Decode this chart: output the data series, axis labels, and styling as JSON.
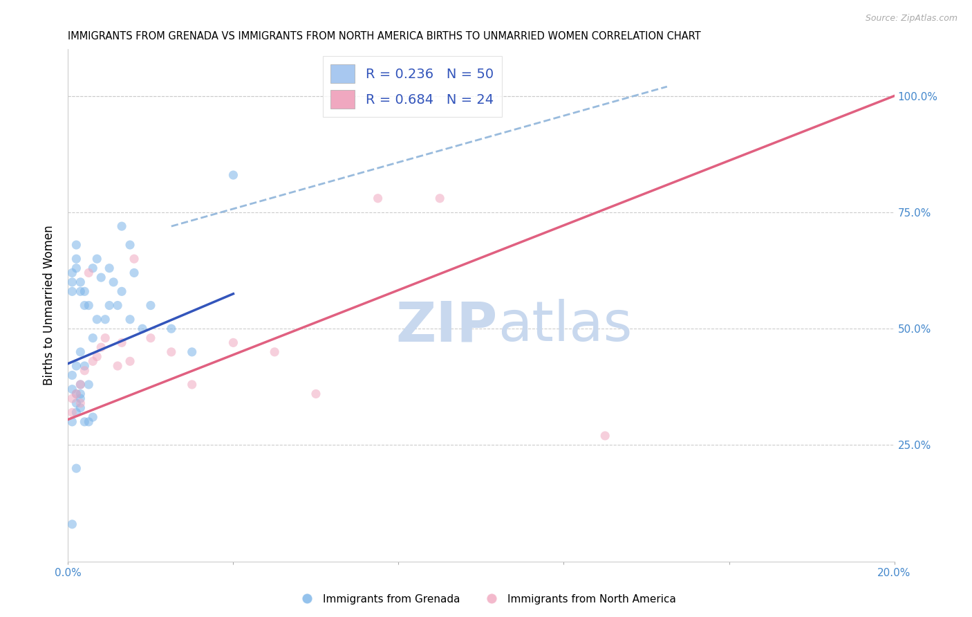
{
  "title": "IMMIGRANTS FROM GRENADA VS IMMIGRANTS FROM NORTH AMERICA BIRTHS TO UNMARRIED WOMEN CORRELATION CHART",
  "source": "Source: ZipAtlas.com",
  "ylabel": "Births to Unmarried Women",
  "ytick_vals": [
    0.25,
    0.5,
    0.75,
    1.0
  ],
  "ytick_labels": [
    "25.0%",
    "50.0%",
    "75.0%",
    "100.0%"
  ],
  "legend_entries": [
    {
      "label": "R = 0.236   N = 50",
      "color": "#a8c8f0"
    },
    {
      "label": "R = 0.684   N = 24",
      "color": "#f0a8c0"
    }
  ],
  "blue_scatter_x": [
    0.001,
    0.001,
    0.001,
    0.001,
    0.001,
    0.002,
    0.002,
    0.002,
    0.002,
    0.002,
    0.003,
    0.003,
    0.003,
    0.003,
    0.003,
    0.004,
    0.004,
    0.004,
    0.005,
    0.005,
    0.006,
    0.006,
    0.007,
    0.007,
    0.008,
    0.009,
    0.01,
    0.01,
    0.011,
    0.012,
    0.013,
    0.013,
    0.015,
    0.015,
    0.016,
    0.018,
    0.02,
    0.025,
    0.03,
    0.04,
    0.001,
    0.002,
    0.003,
    0.002,
    0.003,
    0.004,
    0.005,
    0.006,
    0.001,
    0.002
  ],
  "blue_scatter_y": [
    0.62,
    0.6,
    0.58,
    0.4,
    0.37,
    0.68,
    0.65,
    0.63,
    0.42,
    0.36,
    0.6,
    0.58,
    0.45,
    0.38,
    0.35,
    0.58,
    0.55,
    0.42,
    0.55,
    0.38,
    0.63,
    0.48,
    0.65,
    0.52,
    0.61,
    0.52,
    0.63,
    0.55,
    0.6,
    0.55,
    0.72,
    0.58,
    0.68,
    0.52,
    0.62,
    0.5,
    0.55,
    0.5,
    0.45,
    0.83,
    0.3,
    0.32,
    0.33,
    0.34,
    0.36,
    0.3,
    0.3,
    0.31,
    0.08,
    0.2
  ],
  "pink_scatter_x": [
    0.001,
    0.001,
    0.002,
    0.003,
    0.003,
    0.004,
    0.005,
    0.006,
    0.007,
    0.008,
    0.009,
    0.012,
    0.013,
    0.015,
    0.016,
    0.02,
    0.025,
    0.03,
    0.04,
    0.05,
    0.06,
    0.075,
    0.09,
    0.13
  ],
  "pink_scatter_y": [
    0.35,
    0.32,
    0.36,
    0.38,
    0.34,
    0.41,
    0.62,
    0.43,
    0.44,
    0.46,
    0.48,
    0.42,
    0.47,
    0.43,
    0.65,
    0.48,
    0.45,
    0.38,
    0.47,
    0.45,
    0.36,
    0.78,
    0.78,
    0.27
  ],
  "blue_line_x": [
    0.0,
    0.04
  ],
  "blue_line_y": [
    0.425,
    0.575
  ],
  "pink_line_x": [
    0.0,
    0.2
  ],
  "pink_line_y": [
    0.305,
    1.0
  ],
  "dashed_line_x": [
    0.025,
    0.145
  ],
  "dashed_line_y": [
    0.72,
    1.02
  ],
  "scatter_alpha": 0.55,
  "scatter_size": 90,
  "blue_color": "#7ab3e8",
  "pink_color": "#f0a8c0",
  "blue_line_color": "#3355bb",
  "pink_line_color": "#e06080",
  "dashed_line_color": "#99bbdd",
  "watermark_zip": "ZIP",
  "watermark_atlas": "atlas",
  "xlim": [
    0.0,
    0.2
  ],
  "ylim": [
    0.0,
    1.1
  ],
  "xtick_positions": [
    0.0,
    0.04,
    0.08,
    0.12,
    0.16,
    0.2
  ],
  "xtick_labels": [
    "0.0%",
    "",
    "",
    "",
    "",
    "20.0%"
  ]
}
